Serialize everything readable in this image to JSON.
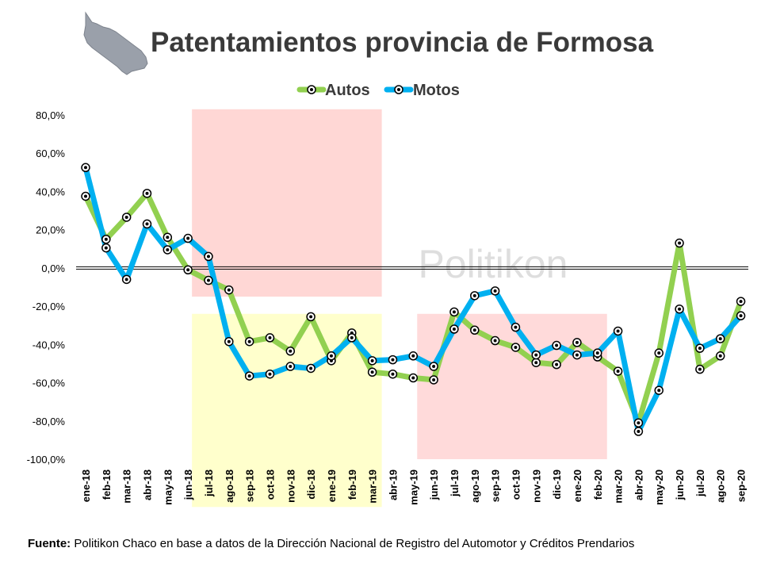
{
  "page": {
    "title": "Patentamientos provincia de Formosa",
    "source_label": "Fuente:",
    "source_text": "Politikon Chaco en base a datos de la Dirección Nacional de Registro del Automotor  y Créditos Prendarios",
    "watermark": "Politikon",
    "logo_icon": "formosa-map-icon"
  },
  "chart_data": {
    "type": "line",
    "title": "Patentamientos provincia de Formosa",
    "xlabel": "",
    "ylabel": "",
    "ylim": [
      -100,
      80
    ],
    "yticks": [
      "80,0%",
      "60,0%",
      "40,0%",
      "20,0%",
      "0,0%",
      "-20,0%",
      "-40,0%",
      "-60,0%",
      "-80,0%",
      "-100,0%"
    ],
    "ytick_values": [
      80,
      60,
      40,
      20,
      0,
      -20,
      -40,
      -60,
      -80,
      -100
    ],
    "legend_position": "top-center",
    "grid": false,
    "categories": [
      "ene-18",
      "feb-18",
      "mar-18",
      "abr-18",
      "may-18",
      "jun-18",
      "jul-18",
      "ago-18",
      "sep-18",
      "oct-18",
      "nov-18",
      "dic-18",
      "ene-19",
      "feb-19",
      "mar-19",
      "abr-19",
      "may-19",
      "jun-19",
      "jul-19",
      "ago-19",
      "sep-19",
      "oct-19",
      "nov-19",
      "dic-19",
      "ene-20",
      "feb-20",
      "mar-20",
      "abr-20",
      "may-20",
      "jun-20",
      "jul-20",
      "ago-20",
      "sep-20"
    ],
    "series": [
      {
        "name": "Autos",
        "color": "#92d050",
        "values": [
          37.5,
          15.0,
          26.5,
          39.0,
          16.0,
          -1.0,
          -6.5,
          -11.5,
          -38.5,
          -36.5,
          -43.5,
          -25.5,
          -48.5,
          -34.0,
          -54.5,
          -55.5,
          -57.5,
          -58.5,
          -23.0,
          -32.5,
          -38.0,
          -41.5,
          -49.5,
          -50.5,
          -39.0,
          -46.5,
          -54.0,
          -81.0,
          -44.5,
          13.0,
          -53.0,
          -46.0,
          -17.5
        ]
      },
      {
        "name": "Motos",
        "color": "#00b0f0",
        "values": [
          52.5,
          10.5,
          -6.0,
          23.0,
          9.5,
          15.5,
          6.0,
          -38.5,
          -56.5,
          -55.5,
          -51.5,
          -52.5,
          -46.0,
          -36.5,
          -48.5,
          -48.0,
          -46.0,
          -51.5,
          -32.0,
          -14.5,
          -12.0,
          -31.0,
          -45.5,
          -40.5,
          -45.5,
          -44.5,
          -33.0,
          -85.5,
          -64.0,
          -21.5,
          -42.0,
          -37.0,
          -25.0
        ]
      }
    ],
    "shaded_regions": [
      {
        "from": "jun-18",
        "to": "mar-19",
        "y_from": -15,
        "y_to": 83,
        "color": "#ffd7d5"
      },
      {
        "from": "jun-18",
        "to": "mar-19",
        "y_from": -125,
        "y_to": -24,
        "color": "#ffffcc"
      },
      {
        "from": "may-19",
        "to": "feb-20",
        "y_from": -100,
        "y_to": -24,
        "color": "#ffdada"
      }
    ]
  }
}
